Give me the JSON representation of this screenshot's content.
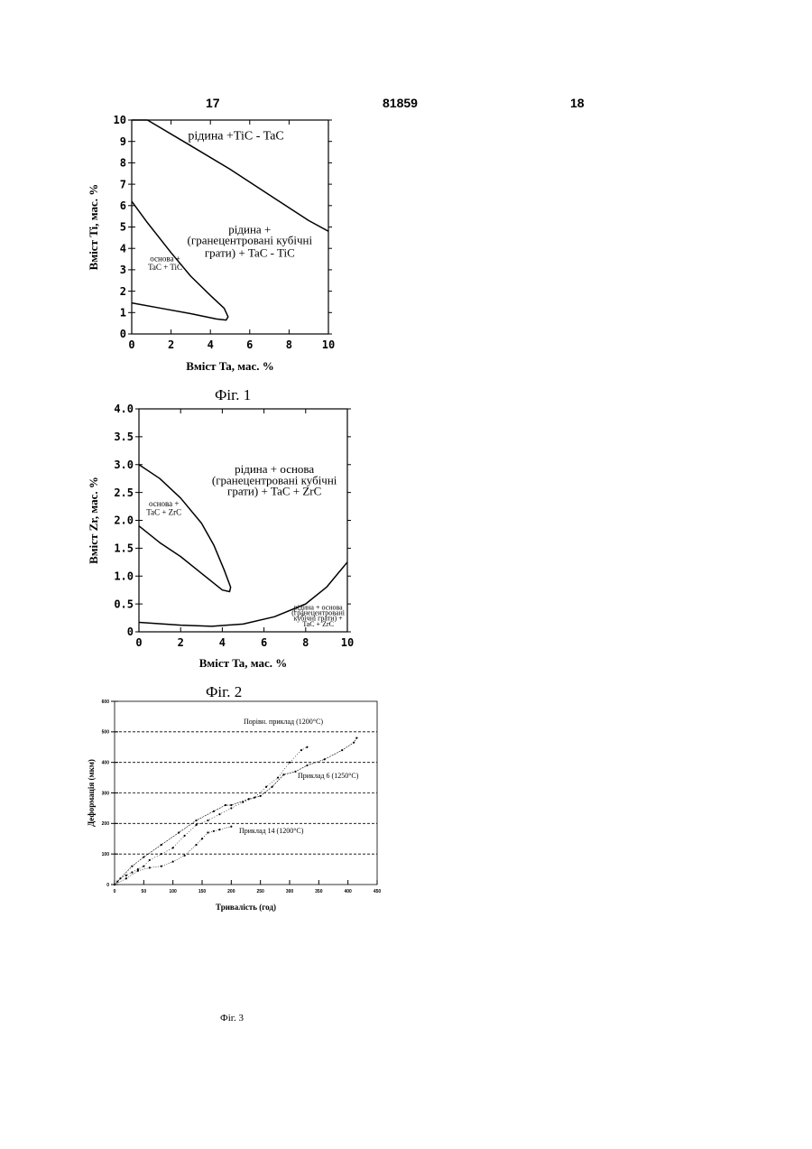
{
  "header": {
    "page_left": "17",
    "patent_number": "81859",
    "page_right": "18"
  },
  "chart_data": [
    {
      "type": "line",
      "caption": "Фіг. 1",
      "xlabel": "Вміст Ta, мас. %",
      "ylabel": "Вміст Ti, мас. %",
      "xlim": [
        0,
        10
      ],
      "ylim": [
        0,
        10
      ],
      "x_ticks": [
        "0",
        "2",
        "4",
        "6",
        "8",
        "10"
      ],
      "y_ticks": [
        "0",
        "1",
        "2",
        "3",
        "4",
        "5",
        "6",
        "7",
        "8",
        "9",
        "10"
      ],
      "grid": false,
      "series": [
        {
          "x": [
            0,
            0.8,
            3,
            5,
            7,
            9,
            10
          ],
          "y": [
            10,
            10,
            8.8,
            7.7,
            6.5,
            5.3,
            4.8
          ]
        },
        {
          "x": [
            0,
            0.8,
            2,
            3,
            4,
            4.7,
            4.9,
            4.8,
            4.3,
            3,
            1.5,
            0
          ],
          "y": [
            6.2,
            5.2,
            3.8,
            2.7,
            1.8,
            1.2,
            0.8,
            0.65,
            0.7,
            0.95,
            1.2,
            1.45
          ]
        }
      ],
      "annotations": [
        {
          "text": "рідина +TiC - TaC",
          "x": 5.3,
          "y": 9.1
        },
        {
          "text": "рідина +",
          "x": 6,
          "y": 4.7
        },
        {
          "text": "(гранецентровані кубічні",
          "x": 6,
          "y": 4.2
        },
        {
          "text": "грати) + TaC - TiC",
          "x": 6,
          "y": 3.6
        },
        {
          "text": "основа +",
          "x": 1.7,
          "y": 3.4
        },
        {
          "text": "TaC + TiC",
          "x": 1.7,
          "y": 3.0
        }
      ]
    },
    {
      "type": "line",
      "caption": "Фіг. 2",
      "xlabel": "Вміст Ta, мас. %",
      "ylabel": "Вміст Zr, мас. %",
      "xlim": [
        0,
        10
      ],
      "ylim": [
        0,
        4.0
      ],
      "x_ticks": [
        "0",
        "2",
        "4",
        "6",
        "8",
        "10"
      ],
      "y_ticks": [
        "0",
        "0.5",
        "1.0",
        "1.5",
        "2.0",
        "2.5",
        "3.0",
        "3.5",
        "4.0"
      ],
      "grid": false,
      "series": [
        {
          "x": [
            0,
            1,
            2,
            3,
            3.6,
            4.1,
            4.4,
            4.35,
            4.0,
            3.0,
            2.0,
            1.0,
            0
          ],
          "y": [
            3.0,
            2.75,
            2.4,
            1.95,
            1.55,
            1.1,
            0.8,
            0.72,
            0.75,
            1.05,
            1.35,
            1.6,
            1.9
          ]
        },
        {
          "x": [
            0,
            2,
            3.5,
            5,
            6.5,
            8,
            9,
            10
          ],
          "y": [
            0.17,
            0.12,
            0.1,
            0.14,
            0.27,
            0.5,
            0.8,
            1.25
          ]
        }
      ],
      "annotations": [
        {
          "text": "рідина + основа",
          "x": 6.5,
          "y": 2.85
        },
        {
          "text": "(гранецентровані кубічні",
          "x": 6.5,
          "y": 2.65
        },
        {
          "text": "грати) + TaC + ZrC",
          "x": 6.5,
          "y": 2.45
        },
        {
          "text": "основа +",
          "x": 1.2,
          "y": 2.25
        },
        {
          "text": "TaC + ZrC",
          "x": 1.2,
          "y": 2.1
        },
        {
          "text": "рідина + основа",
          "x": 8.6,
          "y": 0.4
        },
        {
          "text": "(гранецентровані",
          "x": 8.6,
          "y": 0.3
        },
        {
          "text": "кубічні грати) +",
          "x": 8.6,
          "y": 0.2
        },
        {
          "text": "TaC + ZrC",
          "x": 8.6,
          "y": 0.1
        }
      ]
    },
    {
      "type": "scatter",
      "caption": "Фіг. 3",
      "xlabel": "Тривалість (год)",
      "ylabel": "Деформація (мкм)",
      "xlim": [
        0,
        450
      ],
      "ylim": [
        0,
        600
      ],
      "x_ticks": [
        "0",
        "50",
        "100",
        "150",
        "200",
        "250",
        "300",
        "350",
        "400",
        "450"
      ],
      "y_ticks": [
        "0",
        "100",
        "200",
        "300",
        "400",
        "500",
        "600"
      ],
      "grid": true,
      "series": [
        {
          "name": "Порівн. приклад (1200°C)",
          "x": [
            0,
            5,
            10,
            20,
            30,
            40,
            50,
            60,
            80,
            100,
            120,
            140,
            160,
            180,
            200,
            220,
            240,
            260,
            280,
            300,
            320,
            330
          ],
          "y": [
            0,
            10,
            20,
            30,
            40,
            50,
            60,
            80,
            100,
            120,
            160,
            195,
            210,
            230,
            250,
            270,
            285,
            320,
            350,
            400,
            440,
            450
          ]
        },
        {
          "name": "Приклад 6 (1250°C)",
          "x": [
            0,
            30,
            50,
            80,
            110,
            140,
            170,
            190,
            200,
            230,
            250,
            270,
            290,
            310,
            330,
            360,
            390,
            410,
            415
          ],
          "y": [
            0,
            60,
            90,
            130,
            170,
            210,
            240,
            260,
            260,
            280,
            290,
            320,
            360,
            370,
            390,
            410,
            440,
            465,
            480
          ]
        },
        {
          "name": "Приклад 14 (1200°C)",
          "x": [
            0,
            20,
            40,
            60,
            80,
            100,
            120,
            140,
            150,
            160,
            170,
            180,
            200
          ],
          "y": [
            0,
            20,
            45,
            55,
            60,
            75,
            95,
            130,
            150,
            170,
            175,
            180,
            190
          ]
        }
      ]
    }
  ]
}
